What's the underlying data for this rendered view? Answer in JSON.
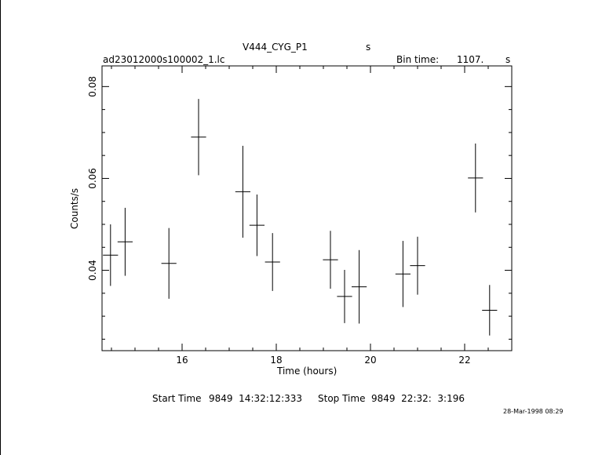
{
  "header": {
    "title": "V444_CYG_P1",
    "title_unit": "s",
    "filename": "ad23012000s100002_1.lc",
    "bin_label": "Bin time:",
    "bin_value": "1107.",
    "bin_unit": "s"
  },
  "footer": {
    "start_label": "Start Time",
    "start_value": "9849  14:32:12:333",
    "stop_label": "Stop Time",
    "stop_value": "9849  22:32:  3:196",
    "date_stamp": "28-Mar-1998 08:29"
  },
  "chart_data": {
    "type": "scatter",
    "title": "V444_CYG_P1",
    "xlabel": "Time (hours)",
    "ylabel": "Counts/s",
    "xlim": [
      14.3,
      23.0
    ],
    "ylim": [
      0.0225,
      0.0845
    ],
    "xticks_major": [
      16,
      18,
      20,
      22
    ],
    "yticks_major": [
      0.04,
      0.06,
      0.08
    ],
    "xtick_labels": [
      "16",
      "18",
      "20",
      "22"
    ],
    "ytick_labels": [
      "0.04",
      "0.06",
      "0.08"
    ],
    "grid": false,
    "points": [
      {
        "x": 14.48,
        "xerr": 0.16,
        "y": 0.0433,
        "yerr": 0.0067
      },
      {
        "x": 14.79,
        "xerr": 0.16,
        "y": 0.0462,
        "yerr": 0.0074
      },
      {
        "x": 15.72,
        "xerr": 0.16,
        "y": 0.0415,
        "yerr": 0.0077
      },
      {
        "x": 16.35,
        "xerr": 0.16,
        "y": 0.069,
        "yerr": 0.0083
      },
      {
        "x": 17.29,
        "xerr": 0.16,
        "y": 0.0571,
        "yerr": 0.01
      },
      {
        "x": 17.59,
        "xerr": 0.16,
        "y": 0.0498,
        "yerr": 0.0067
      },
      {
        "x": 17.92,
        "xerr": 0.16,
        "y": 0.0418,
        "yerr": 0.0063
      },
      {
        "x": 19.15,
        "xerr": 0.16,
        "y": 0.0423,
        "yerr": 0.0063
      },
      {
        "x": 19.45,
        "xerr": 0.16,
        "y": 0.0343,
        "yerr": 0.0058
      },
      {
        "x": 19.76,
        "xerr": 0.16,
        "y": 0.0364,
        "yerr": 0.008
      },
      {
        "x": 20.69,
        "xerr": 0.16,
        "y": 0.0392,
        "yerr": 0.0072
      },
      {
        "x": 21.0,
        "xerr": 0.16,
        "y": 0.041,
        "yerr": 0.0063
      },
      {
        "x": 22.23,
        "xerr": 0.16,
        "y": 0.0601,
        "yerr": 0.0075
      },
      {
        "x": 22.53,
        "xerr": 0.16,
        "y": 0.0313,
        "yerr": 0.0055
      }
    ]
  }
}
